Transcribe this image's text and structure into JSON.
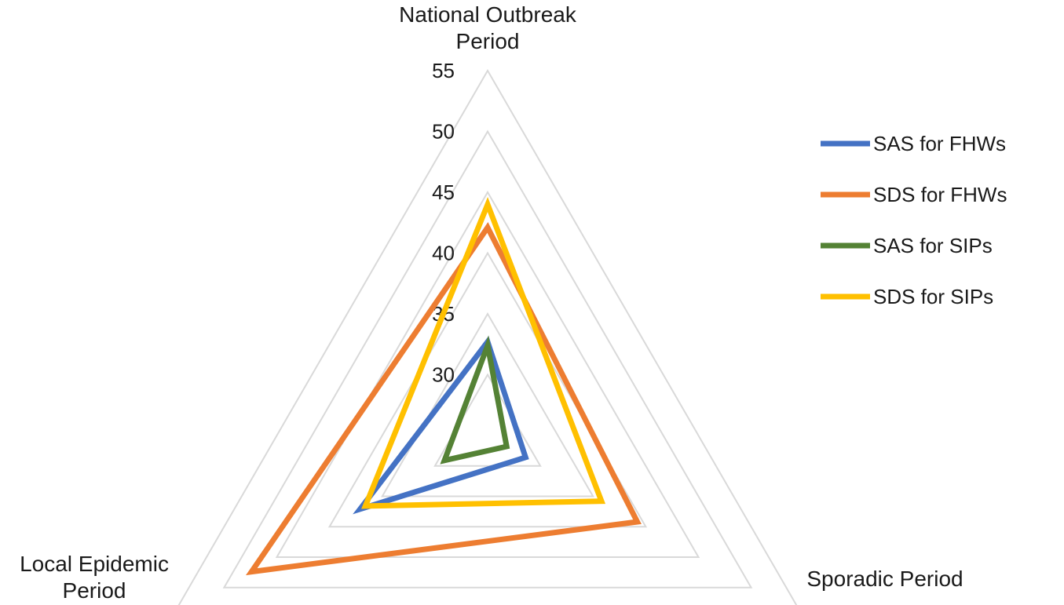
{
  "chart_data": {
    "type": "radar",
    "axes": [
      "National Outbreak Period",
      "Sporadic Period",
      "Local Epidemic Period"
    ],
    "axis_label_lines": [
      [
        "National Outbreak",
        "Period"
      ],
      [
        "Sporadic Period"
      ],
      [
        "Local Epidemic",
        "Period"
      ]
    ],
    "rlim": [
      25,
      55
    ],
    "ticks": [
      30,
      35,
      40,
      45,
      50,
      55
    ],
    "tick_labels": [
      "30",
      "35",
      "40",
      "45",
      "50",
      "55"
    ],
    "grid": true,
    "legend_position": "right",
    "series": [
      {
        "name": "SAS for FHWs",
        "color": "#4472C4",
        "values": [
          32.7,
          28.6,
          37.1
        ]
      },
      {
        "name": "SDS for FHWs",
        "color": "#ED7D31",
        "values": [
          42.1,
          39.2,
          47.4
        ]
      },
      {
        "name": "SAS for SIPs",
        "color": "#548235",
        "values": [
          32.4,
          26.8,
          29.1
        ]
      },
      {
        "name": "SDS for SIPs",
        "color": "#FFC000",
        "values": [
          44.0,
          35.8,
          36.6
        ]
      }
    ]
  }
}
